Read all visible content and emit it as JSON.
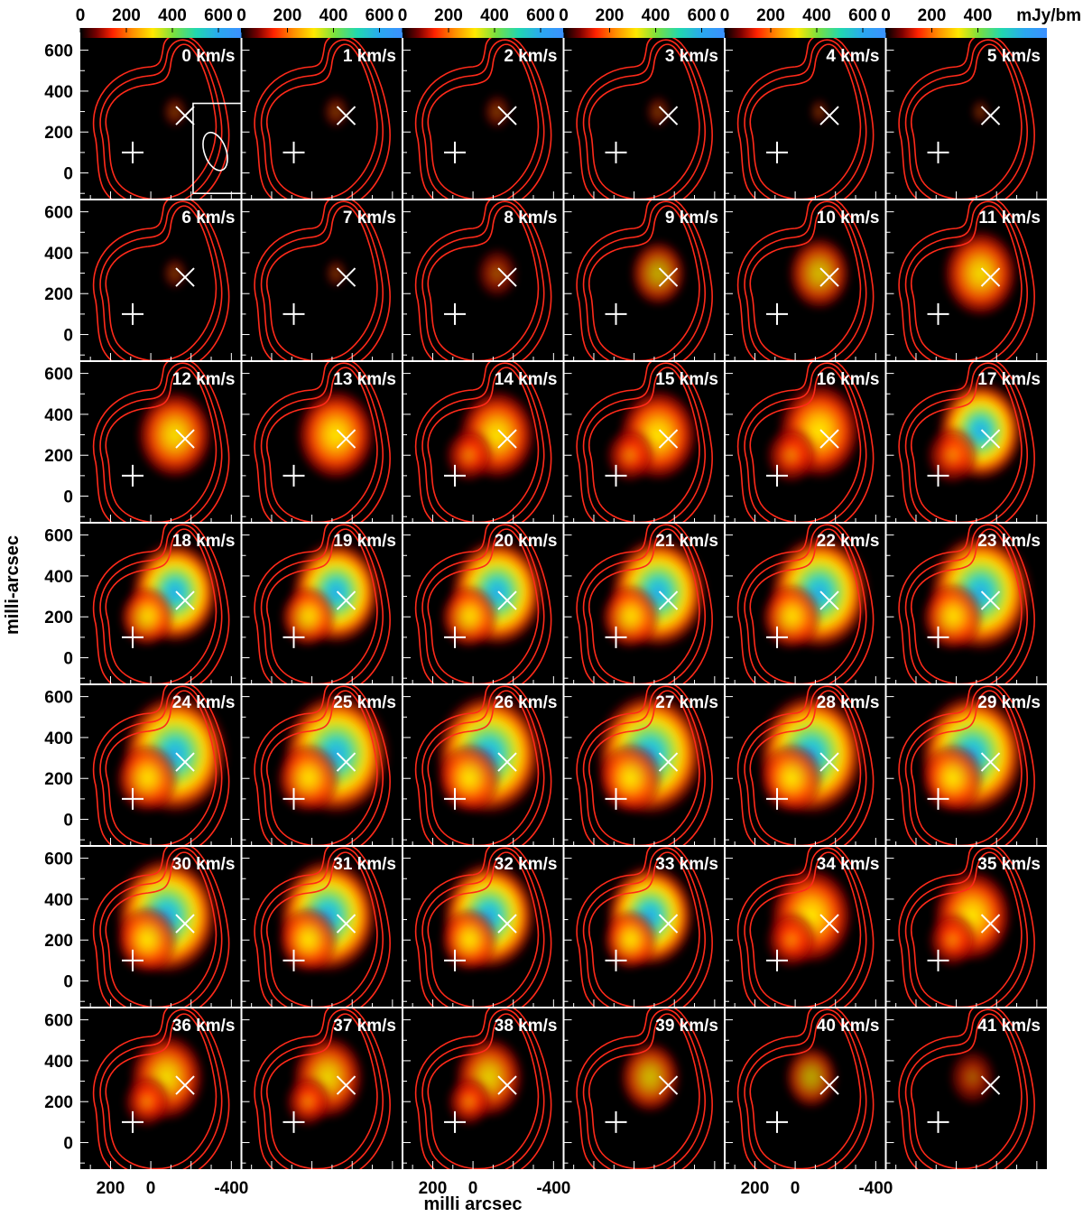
{
  "chart_data": {
    "type": "heatmap",
    "title": "",
    "xlabel": "milli arcsec",
    "ylabel": "milli-arcsec",
    "colorbar_unit": "mJy/bm",
    "colorbar_ticks": [
      "0",
      "200",
      "400",
      "600"
    ],
    "colorbar_ticks_last": [
      "0",
      "200",
      "400"
    ],
    "x_ticks": [
      "200",
      "0",
      "-400"
    ],
    "x_tick_values": [
      200,
      0,
      -400
    ],
    "y_ticks": [
      "600",
      "400",
      "200",
      "0"
    ],
    "y_tick_values": [
      600,
      400,
      200,
      0
    ],
    "xlim": [
      350,
      -450
    ],
    "ylim": [
      -130,
      660
    ],
    "clim": [
      0,
      700
    ],
    "grid": false,
    "rows": 7,
    "cols": 6,
    "velocity_unit": "km/s",
    "panel_labels": [
      "0 km/s",
      "1 km/s",
      "2 km/s",
      "3 km/s",
      "4 km/s",
      "5 km/s",
      "6 km/s",
      "7 km/s",
      "8 km/s",
      "9 km/s",
      "10 km/s",
      "11 km/s",
      "12 km/s",
      "13 km/s",
      "14 km/s",
      "15 km/s",
      "16 km/s",
      "17 km/s",
      "18 km/s",
      "19 km/s",
      "20 km/s",
      "21 km/s",
      "22 km/s",
      "23 km/s",
      "24 km/s",
      "25 km/s",
      "26 km/s",
      "27 km/s",
      "28 km/s",
      "29 km/s",
      "30 km/s",
      "31 km/s",
      "32 km/s",
      "33 km/s",
      "34 km/s",
      "35 km/s",
      "36 km/s",
      "37 km/s",
      "38 km/s",
      "39 km/s",
      "40 km/s",
      "41 km/s"
    ],
    "peak_flux": [
      60,
      70,
      80,
      60,
      20,
      15,
      60,
      40,
      180,
      280,
      330,
      420,
      430,
      450,
      440,
      450,
      480,
      500,
      520,
      530,
      560,
      580,
      600,
      620,
      640,
      650,
      650,
      660,
      650,
      640,
      620,
      600,
      560,
      520,
      480,
      450,
      420,
      400,
      380,
      320,
      260,
      220
    ],
    "plus_marker_position": [
      90,
      100
    ],
    "x_marker_position": [
      -170,
      280
    ],
    "colors": {
      "background": "#000000",
      "contour": "#ff2a1a",
      "marker": "#ffffff",
      "frame_separator": "#ffffff"
    }
  }
}
